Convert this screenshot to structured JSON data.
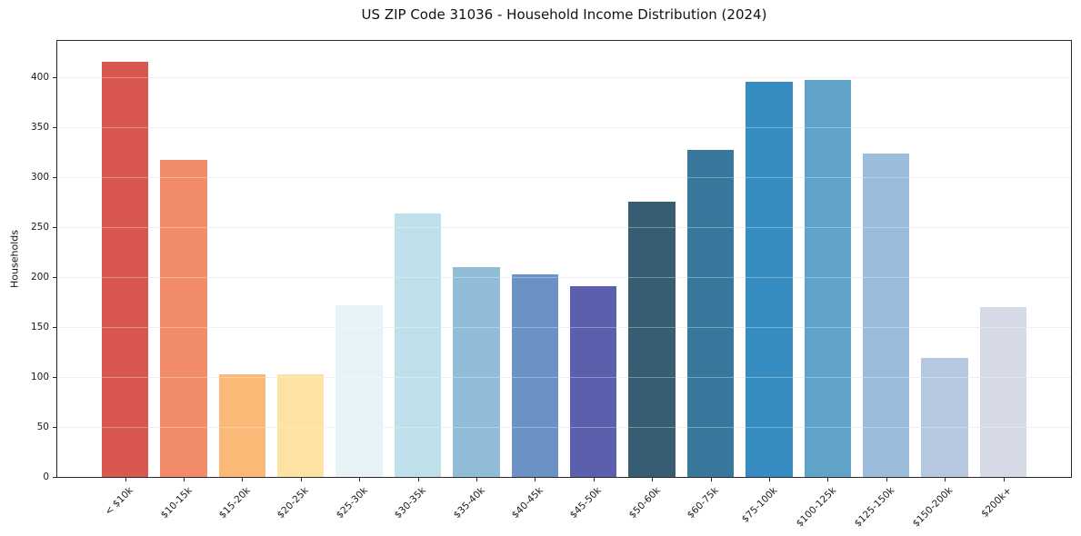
{
  "chart_data": {
    "type": "bar",
    "title": "US ZIP Code 31036 - Household Income Distribution (2024)",
    "xlabel": "",
    "ylabel": "Households",
    "categories": [
      "< $10k",
      "$10-15k",
      "$15-20k",
      "$20-25k",
      "$25-30k",
      "$30-35k",
      "$35-40k",
      "$40-45k",
      "$45-50k",
      "$50-60k",
      "$60-75k",
      "$75-100k",
      "$100-125k",
      "$125-150k",
      "$150-200k",
      "$200k+"
    ],
    "values": [
      415,
      317,
      103,
      103,
      172,
      263,
      210,
      203,
      191,
      275,
      327,
      395,
      397,
      323,
      119,
      170
    ],
    "bar_colors": [
      "#d9574f",
      "#f28b68",
      "#fbb977",
      "#fde2a3",
      "#e6f2f5",
      "#bee0eb",
      "#90bcd8",
      "#6b92c4",
      "#5a5fae",
      "#365d72",
      "#38789c",
      "#368cc0",
      "#5fa4c8",
      "#9bbcda",
      "#b6c8e0",
      "#d6d9e6"
    ],
    "yticks": [
      0,
      50,
      100,
      150,
      200,
      250,
      300,
      350,
      400
    ],
    "ylim": [
      0,
      436
    ],
    "grid": "horizontal",
    "gridline_color": "#e7e7e7",
    "legend": "none",
    "x_tick_rotation": 45,
    "background_color": "#ffffff",
    "spine_color": "#2a2a2a"
  }
}
